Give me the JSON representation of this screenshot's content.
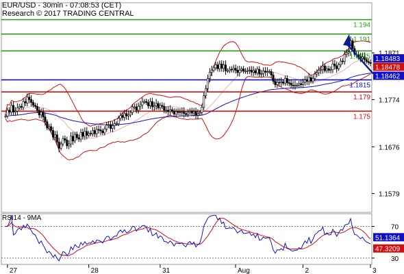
{
  "header": {
    "title": "EUR/USD - 30min - 07:08:53 (CET)",
    "credit": "Research © 2017 TRADING CENTRAL"
  },
  "chart_data": [
    {
      "type": "line",
      "panel": "price",
      "y_ticks": [
        "1.1871",
        "1.1774",
        "1.1676",
        "1.1579"
      ],
      "ylim": [
        1.154,
        1.1975
      ],
      "x_axis": {
        "n_bars": 185,
        "tick_labels": [
          {
            "label": "27",
            "bar": 1
          },
          {
            "label": "28",
            "bar": 42
          },
          {
            "label": "31",
            "bar": 78
          },
          {
            "label": "Aug",
            "bar": 116
          },
          {
            "label": "2",
            "bar": 150
          },
          {
            "label": "3",
            "bar": 184
          }
        ]
      },
      "horizontal_levels": [
        {
          "label": "1.194",
          "value": 1.194,
          "role": "resistance",
          "color": "#2a9a1a"
        },
        {
          "label": "1.191",
          "value": 1.191,
          "role": "resistance",
          "color": "#2a9a1a"
        },
        {
          "label": "1.1875",
          "value": 1.1875,
          "role": "resistance",
          "color": "#2a9a1a"
        },
        {
          "label": "1.1815",
          "value": 1.1815,
          "role": "pivot",
          "color": "#1010c8"
        },
        {
          "label": "1.179",
          "value": 1.179,
          "role": "support",
          "color": "#d01010"
        },
        {
          "label": "1.175",
          "value": 1.175,
          "role": "support",
          "color": "#d01010"
        }
      ],
      "price_badges": [
        {
          "label": "1.18483",
          "value": 1.18483,
          "color": "#1010c8"
        },
        {
          "label": "1.18478",
          "value": 1.18478,
          "color": "#d01010"
        },
        {
          "label": "1.18462",
          "value": 1.18462,
          "color": "#1010c8"
        }
      ],
      "candles_close": [
        1.174,
        1.1752,
        1.1748,
        1.1762,
        1.1748,
        1.175,
        1.1757,
        1.176,
        1.1758,
        1.177,
        1.1767,
        1.1779,
        1.1774,
        1.1768,
        1.1762,
        1.176,
        1.1752,
        1.1742,
        1.1748,
        1.1738,
        1.1728,
        1.1715,
        1.1718,
        1.171,
        1.1696,
        1.1701,
        1.1686,
        1.1673,
        1.1682,
        1.1693,
        1.169,
        1.1678,
        1.1682,
        1.1698,
        1.1688,
        1.1702,
        1.1695,
        1.1692,
        1.1706,
        1.1698,
        1.1708,
        1.17,
        1.1704,
        1.1703,
        1.171,
        1.1703,
        1.1712,
        1.1711,
        1.1709,
        1.1705,
        1.1713,
        1.1721,
        1.1722,
        1.1714,
        1.172,
        1.1724,
        1.1724,
        1.1735,
        1.1741,
        1.1737,
        1.1745,
        1.174,
        1.1742,
        1.1747,
        1.1759,
        1.1759,
        1.1752,
        1.176,
        1.1763,
        1.1769,
        1.177,
        1.1768,
        1.1761,
        1.177,
        1.1759,
        1.1761,
        1.1766,
        1.1757,
        1.1762,
        1.176,
        1.1752,
        1.1752,
        1.1749,
        1.1753,
        1.175,
        1.1744,
        1.1749,
        1.1748,
        1.1748,
        1.1749,
        1.1745,
        1.1743,
        1.1748,
        1.175,
        1.1746,
        1.1749,
        1.1742,
        1.1745,
        1.1747,
        1.1758,
        1.1782,
        1.1797,
        1.1818,
        1.1831,
        1.1835,
        1.184,
        1.1846,
        1.1838,
        1.1848,
        1.1839,
        1.1846,
        1.1834,
        1.1834,
        1.1837,
        1.1836,
        1.1839,
        1.1835,
        1.183,
        1.1835,
        1.1838,
        1.1833,
        1.1833,
        1.1834,
        1.1835,
        1.1831,
        1.1834,
        1.1829,
        1.1837,
        1.1827,
        1.1828,
        1.1833,
        1.1831,
        1.1832,
        1.1832,
        1.1825,
        1.1812,
        1.1805,
        1.181,
        1.1809,
        1.1811,
        1.1808,
        1.1818,
        1.1809,
        1.1808,
        1.1804,
        1.1803,
        1.1804,
        1.1804,
        1.1807,
        1.1805,
        1.181,
        1.1815,
        1.1812,
        1.182,
        1.1812,
        1.1818,
        1.1827,
        1.183,
        1.1835,
        1.1836,
        1.1844,
        1.1834,
        1.1838,
        1.1835,
        1.1836,
        1.1848,
        1.1844,
        1.1838,
        1.1846,
        1.1854,
        1.1853,
        1.1868,
        1.1871,
        1.1873,
        1.1896,
        1.188,
        1.1868,
        1.1867,
        1.1863,
        1.1859,
        1.1863,
        1.1857,
        1.1853,
        1.1851,
        1.1849,
        1.1845,
        1.1844,
        1.1848,
        1.1848
      ],
      "forecast_arrow": {
        "from_value": 1.1845,
        "to_value": 1.191,
        "color": "#0a1e8c"
      }
    },
    {
      "type": "line",
      "panel": "indicator",
      "label": "RSI14 - 9MA",
      "ylim": [
        22,
        86
      ],
      "y_ticks": [
        "70",
        "30"
      ],
      "badges": [
        {
          "label": "51.1364",
          "value": 51.1364,
          "color": "#1010c8"
        },
        {
          "label": "47.3209",
          "value": 47.3209,
          "color": "#d01010"
        }
      ]
    }
  ]
}
